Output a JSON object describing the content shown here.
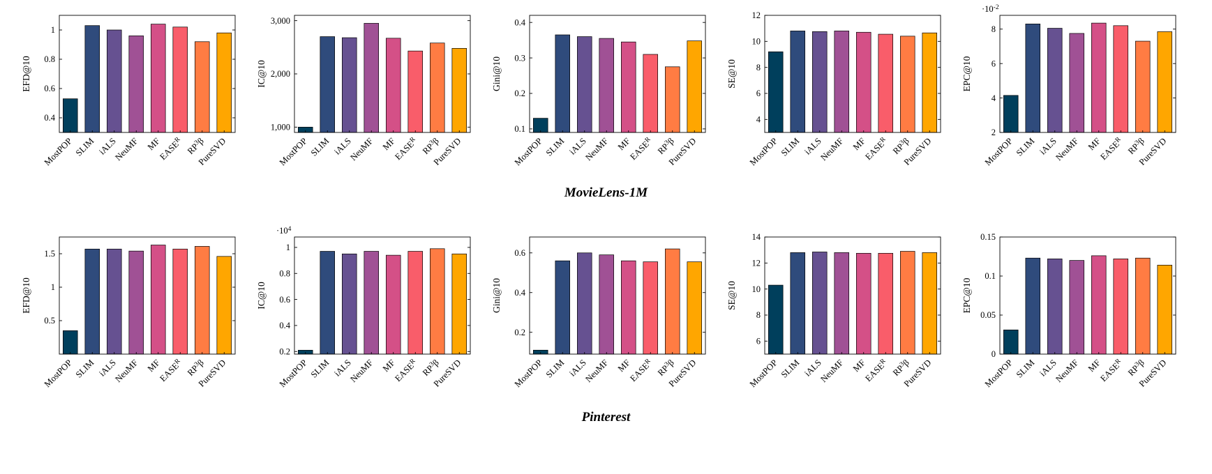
{
  "palette": [
    "#003f5c",
    "#2f4b7c",
    "#665191",
    "#a05195",
    "#d45087",
    "#f95d6a",
    "#ff7c43",
    "#ffa600"
  ],
  "categories": [
    "MostPOP",
    "SLIM",
    "iALS",
    "NeuMF",
    "MF",
    "EASE^R^",
    "RP^3^β",
    "PureSVD"
  ],
  "captions": {
    "row1": "MovieLens-1M",
    "row2": "Pinterest"
  },
  "chart_data": [
    {
      "type": "bar",
      "dataset": "MovieLens-1M",
      "ylabel": "EFD@10",
      "scale_label": "",
      "ylim": [
        0.3,
        1.1
      ],
      "yticks": [
        0.4,
        0.6,
        0.8,
        1
      ],
      "ytick_labels": [
        "0.4",
        "0.6",
        "0.8",
        "1"
      ],
      "values": [
        0.53,
        1.03,
        1.0,
        0.96,
        1.04,
        1.02,
        0.92,
        0.98
      ],
      "grid": false,
      "legend": false
    },
    {
      "type": "bar",
      "dataset": "MovieLens-1M",
      "ylabel": "IC@10",
      "scale_label": "",
      "ylim": [
        900,
        3100
      ],
      "yticks": [
        1000,
        2000,
        3000
      ],
      "ytick_labels": [
        "1,000",
        "2,000",
        "3,000"
      ],
      "values": [
        1000,
        2700,
        2680,
        2950,
        2670,
        2430,
        2580,
        2480
      ],
      "grid": false,
      "legend": false
    },
    {
      "type": "bar",
      "dataset": "MovieLens-1M",
      "ylabel": "Gini@10",
      "scale_label": "",
      "ylim": [
        0.09,
        0.42
      ],
      "yticks": [
        0.1,
        0.2,
        0.3,
        0.4
      ],
      "ytick_labels": [
        "0.1",
        "0.2",
        "0.3",
        "0.4"
      ],
      "values": [
        0.13,
        0.365,
        0.36,
        0.355,
        0.345,
        0.31,
        0.275,
        0.348
      ],
      "grid": false,
      "legend": false
    },
    {
      "type": "bar",
      "dataset": "MovieLens-1M",
      "ylabel": "SE@10",
      "scale_label": "",
      "ylim": [
        3,
        12
      ],
      "yticks": [
        4,
        6,
        8,
        10,
        12
      ],
      "ytick_labels": [
        "4",
        "6",
        "8",
        "10",
        "12"
      ],
      "values": [
        9.2,
        10.8,
        10.75,
        10.8,
        10.7,
        10.55,
        10.4,
        10.65
      ],
      "grid": false,
      "legend": false
    },
    {
      "type": "bar",
      "dataset": "MovieLens-1M",
      "ylabel": "EPC@10",
      "scale_label": "·10^-2^",
      "ylim": [
        2,
        8.8
      ],
      "yticks": [
        2,
        4,
        6,
        8
      ],
      "ytick_labels": [
        "2",
        "4",
        "6",
        "8"
      ],
      "values": [
        4.15,
        8.3,
        8.05,
        7.75,
        8.35,
        8.2,
        7.3,
        7.85
      ],
      "grid": false,
      "legend": false
    },
    {
      "type": "bar",
      "dataset": "Pinterest",
      "ylabel": "EFD@10",
      "scale_label": "",
      "ylim": [
        0,
        1.75
      ],
      "yticks": [
        0.5,
        1,
        1.5
      ],
      "ytick_labels": [
        "0.5",
        "1",
        "1.5"
      ],
      "values": [
        0.35,
        1.57,
        1.57,
        1.54,
        1.63,
        1.57,
        1.61,
        1.46
      ],
      "grid": false,
      "legend": false
    },
    {
      "type": "bar",
      "dataset": "Pinterest",
      "ylabel": "IC@10",
      "scale_label": "·10^4^",
      "ylim": [
        0.18,
        1.08
      ],
      "yticks": [
        0.2,
        0.4,
        0.6,
        0.8,
        1
      ],
      "ytick_labels": [
        "0.2",
        "0.4",
        "0.6",
        "0.8",
        "1"
      ],
      "values": [
        0.21,
        0.97,
        0.95,
        0.97,
        0.94,
        0.97,
        0.99,
        0.95
      ],
      "grid": false,
      "legend": false
    },
    {
      "type": "bar",
      "dataset": "Pinterest",
      "ylabel": "Gini@10",
      "scale_label": "",
      "ylim": [
        0.09,
        0.68
      ],
      "yticks": [
        0.2,
        0.4,
        0.6
      ],
      "ytick_labels": [
        "0.2",
        "0.4",
        "0.6"
      ],
      "values": [
        0.11,
        0.56,
        0.6,
        0.59,
        0.56,
        0.555,
        0.62,
        0.555
      ],
      "grid": false,
      "legend": false
    },
    {
      "type": "bar",
      "dataset": "Pinterest",
      "ylabel": "SE@10",
      "scale_label": "",
      "ylim": [
        5,
        14
      ],
      "yticks": [
        6,
        8,
        10,
        12,
        14
      ],
      "ytick_labels": [
        "6",
        "8",
        "10",
        "12",
        "14"
      ],
      "values": [
        10.3,
        12.8,
        12.85,
        12.8,
        12.75,
        12.75,
        12.9,
        12.8
      ],
      "grid": false,
      "legend": false
    },
    {
      "type": "bar",
      "dataset": "Pinterest",
      "ylabel": "EPC@10",
      "scale_label": "",
      "ylim": [
        0,
        0.15
      ],
      "yticks": [
        0,
        0.05,
        0.1,
        0.15
      ],
      "ytick_labels": [
        "0",
        "0.05",
        "0.1",
        "0.15"
      ],
      "values": [
        0.031,
        0.123,
        0.122,
        0.12,
        0.126,
        0.122,
        0.123,
        0.114
      ],
      "grid": false,
      "legend": false
    }
  ]
}
